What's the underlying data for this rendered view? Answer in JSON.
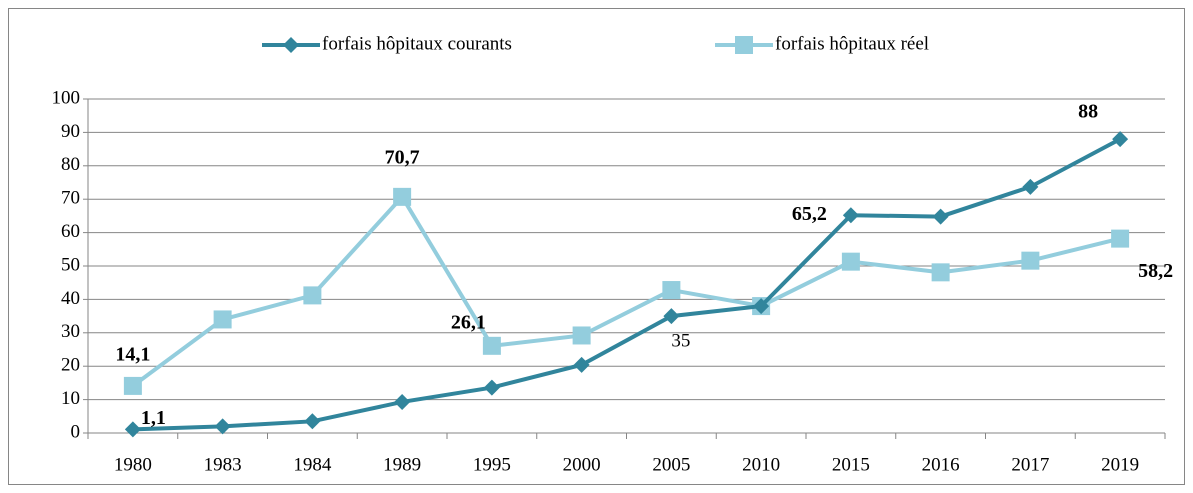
{
  "chart_data": {
    "type": "line",
    "categories": [
      "1980",
      "1983",
      "1984",
      "1989",
      "1995",
      "2000",
      "2005",
      "2010",
      "2015",
      "2016",
      "2017",
      "2019"
    ],
    "series": [
      {
        "name": "forfais hôpitaux courants",
        "color": "#31859c",
        "marker": "diamond",
        "values": [
          1.1,
          2,
          3.5,
          9.3,
          13.6,
          20.4,
          35,
          38,
          65.2,
          64.8,
          73.7,
          88
        ],
        "value_labels": [
          "1,1",
          null,
          null,
          null,
          null,
          null,
          "35",
          null,
          "65,2",
          null,
          null,
          "88"
        ]
      },
      {
        "name": "forfais hôpitaux réel",
        "color": "#93cddd",
        "marker": "square",
        "values": [
          14.1,
          34,
          41.2,
          70.7,
          26.1,
          29.2,
          42.8,
          38,
          51.3,
          48.1,
          51.6,
          58.2
        ],
        "value_labels": [
          "14,1",
          null,
          null,
          "70,7",
          "26,1",
          null,
          null,
          null,
          null,
          null,
          null,
          "58,2"
        ]
      }
    ],
    "ylim": [
      0,
      100
    ],
    "yticks": [
      0,
      10,
      20,
      30,
      40,
      50,
      60,
      70,
      80,
      90,
      100
    ],
    "grid": true,
    "legend": "top"
  }
}
